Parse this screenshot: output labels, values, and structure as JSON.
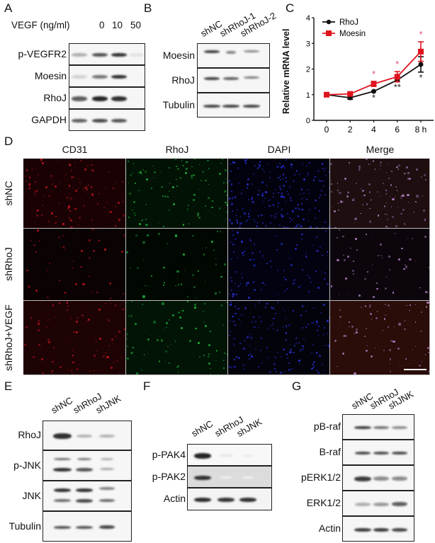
{
  "panels": {
    "A": {
      "letter": "A",
      "treatment_label": "VEGF (ng/ml)",
      "doses": [
        "0",
        "10",
        "50"
      ],
      "rows": [
        {
          "label": "p-VEGFR2",
          "bands": [
            0.35,
            0.75,
            0.9,
            0.12
          ]
        },
        {
          "label": "Moesin",
          "bands": [
            0.2,
            0.6,
            0.9,
            0.0
          ]
        },
        {
          "label": "RhoJ",
          "bands": [
            0.7,
            0.95,
            0.9,
            0.05
          ]
        },
        {
          "label": "GAPDH",
          "bands": [
            0.7,
            0.8,
            0.75,
            0.0
          ]
        }
      ]
    },
    "B": {
      "letter": "B",
      "lanes": [
        "shNC",
        "shRhoJ-1",
        "shRhoJ-2"
      ],
      "rows": [
        {
          "label": "Moesin"
        },
        {
          "label": "RhoJ"
        },
        {
          "label": "Tubulin"
        }
      ]
    },
    "C": {
      "letter": "C"
    },
    "D": {
      "letter": "D",
      "columns": [
        "CD31",
        "RhoJ",
        "DAPI",
        "Merge"
      ],
      "rows": [
        "shNC",
        "shRhoJ",
        "shRhoJ+VEGF"
      ]
    },
    "E": {
      "letter": "E",
      "lanes": [
        "shNC",
        "shRhoJ",
        "shJNK"
      ],
      "rows": [
        {
          "label": "RhoJ"
        },
        {
          "label": "p-JNK"
        },
        {
          "label": "JNK"
        },
        {
          "label": "Tubulin"
        }
      ]
    },
    "F": {
      "letter": "F",
      "lanes": [
        "shNC",
        "shRhoJ",
        "shJNK"
      ],
      "rows": [
        {
          "label": "p-PAK4"
        },
        {
          "label": "p-PAK2"
        },
        {
          "label": "Actin"
        }
      ]
    },
    "G": {
      "letter": "G",
      "lanes": [
        "shNC",
        "shRhoJ",
        "shJNK"
      ],
      "rows": [
        {
          "label": "pB-raf"
        },
        {
          "label": "B-raf"
        },
        {
          "label": "pERK1/2"
        },
        {
          "label": "ERK1/2"
        },
        {
          "label": "Actin"
        }
      ]
    }
  },
  "colors": {
    "rhoj_series": "#111111",
    "moesin_series": "#e0141e",
    "cd31_channel": "#c8141e",
    "rhoj_channel": "#1eb43c",
    "dapi_channel": "#2832dc",
    "merge_channel": "#b482c8"
  },
  "chart_data": {
    "type": "line",
    "title": "",
    "xlabel": "",
    "ylabel": "Relative mRNA level",
    "x": [
      0,
      2,
      4,
      6,
      8
    ],
    "x_tick_labels": [
      "0",
      "2",
      "4",
      "6",
      "8 h"
    ],
    "xlim": [
      -1,
      9
    ],
    "ylim": [
      0,
      4
    ],
    "y_ticks": [
      "0",
      "1",
      "2",
      "3",
      "4"
    ],
    "legend_position": "upper left",
    "grid": false,
    "series": [
      {
        "name": "RhoJ",
        "marker": "circle",
        "color": "#111111",
        "values": [
          1.0,
          0.88,
          1.13,
          1.57,
          2.18
        ],
        "errors": [
          0.03,
          0.06,
          0.04,
          0.06,
          0.3
        ],
        "significance": [
          "",
          "",
          "*",
          "**",
          "*"
        ]
      },
      {
        "name": "Moesin",
        "marker": "square",
        "color": "#e0141e",
        "values": [
          1.0,
          1.03,
          1.42,
          1.7,
          2.68
        ],
        "errors": [
          0.03,
          0.05,
          0.1,
          0.2,
          0.38
        ],
        "significance": [
          "",
          "",
          "*",
          "*",
          "*"
        ]
      }
    ]
  }
}
